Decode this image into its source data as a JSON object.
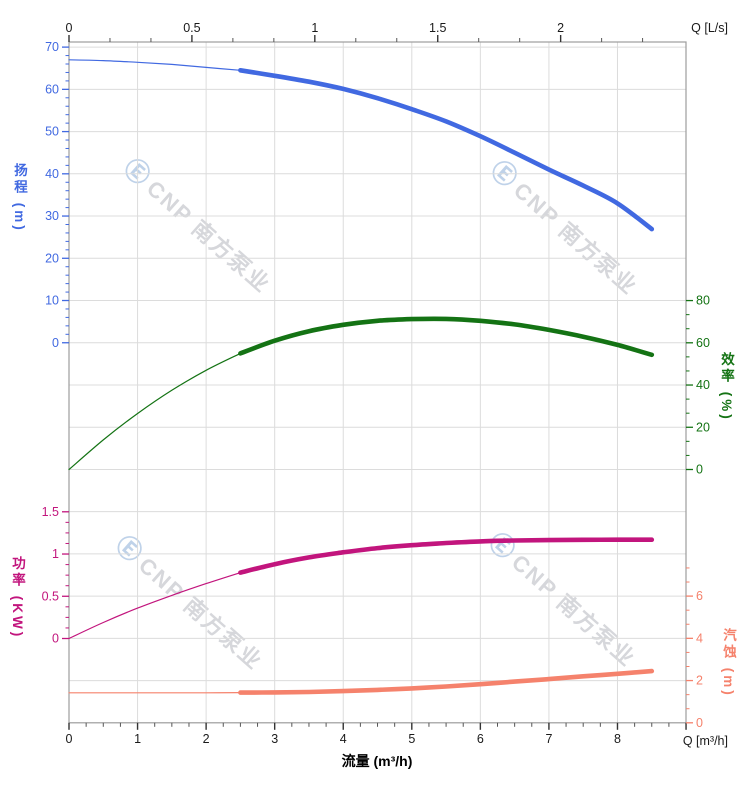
{
  "watermark": {
    "logo": "Ⓔ",
    "text": "CNP 南方泵业",
    "logo_color": "#BFD2E9",
    "text_color": "#D6D7DB"
  },
  "chart_data": {
    "type": "line",
    "title": "",
    "grid": true,
    "x_axis_top": {
      "label": "Q [L/s]",
      "ticks": [
        0,
        0.5,
        1,
        1.5,
        2
      ],
      "range": [
        0,
        2.5
      ],
      "color": "#1a1a1a"
    },
    "x_axis_bottom": {
      "label": "Q [m³/h]",
      "title": "流量 (m³/h)",
      "ticks": [
        0,
        1,
        2,
        3,
        4,
        5,
        6,
        7,
        8
      ],
      "range": [
        0,
        9
      ],
      "color": "#1a1a1a"
    },
    "y_axes": [
      {
        "id": "head",
        "title": "扬程 (m)",
        "side": "left",
        "color": "#4169E1",
        "ticks": [
          0,
          10,
          20,
          30,
          40,
          50,
          60,
          70
        ],
        "range": [
          0,
          70
        ]
      },
      {
        "id": "eff",
        "title": "效率 (%)",
        "side": "right",
        "color": "#147314",
        "ticks": [
          0,
          20,
          40,
          60,
          80
        ],
        "range": [
          0,
          80
        ]
      },
      {
        "id": "power",
        "title": "功率 (KW)",
        "side": "left",
        "color": "#C2157D",
        "ticks": [
          0,
          0.5,
          1,
          1.5
        ],
        "range": [
          0,
          1.5
        ]
      },
      {
        "id": "npsh",
        "title": "汽蚀 (m)",
        "side": "right",
        "color": "#F5826C",
        "ticks": [
          0,
          2,
          4,
          6
        ],
        "range": [
          0,
          6
        ]
      }
    ],
    "duty_split_q": 2.5,
    "series": [
      {
        "name": "head",
        "label": "扬程",
        "axis": "head",
        "color": "#4169E1",
        "points": [
          [
            0,
            67
          ],
          [
            0.5,
            66.8
          ],
          [
            1,
            66.4
          ],
          [
            1.5,
            65.9
          ],
          [
            2,
            65.2
          ],
          [
            2.5,
            64.5
          ],
          [
            3,
            63.2
          ],
          [
            3.5,
            61.8
          ],
          [
            4,
            60.1
          ],
          [
            4.5,
            57.9
          ],
          [
            5,
            55.3
          ],
          [
            5.5,
            52.4
          ],
          [
            6,
            48.9
          ],
          [
            6.5,
            45
          ],
          [
            7,
            41
          ],
          [
            7.5,
            37.2
          ],
          [
            8,
            33
          ],
          [
            8.5,
            26.9
          ]
        ]
      },
      {
        "name": "efficiency",
        "label": "效率",
        "axis": "eff",
        "color": "#147314",
        "points": [
          [
            0,
            0
          ],
          [
            0.5,
            14
          ],
          [
            1,
            26.5
          ],
          [
            1.5,
            37.5
          ],
          [
            2,
            47
          ],
          [
            2.5,
            55
          ],
          [
            3,
            61
          ],
          [
            3.5,
            65.5
          ],
          [
            4,
            68.5
          ],
          [
            4.5,
            70.4
          ],
          [
            5,
            71.2
          ],
          [
            5.5,
            71.3
          ],
          [
            6,
            70.4
          ],
          [
            6.5,
            68.7
          ],
          [
            7,
            66.1
          ],
          [
            7.5,
            62.9
          ],
          [
            8,
            59
          ],
          [
            8.5,
            54.3
          ]
        ]
      },
      {
        "name": "power",
        "label": "功率",
        "axis": "power",
        "color": "#C2157D",
        "points": [
          [
            0,
            0
          ],
          [
            0.5,
            0.19
          ],
          [
            1,
            0.36
          ],
          [
            1.5,
            0.51
          ],
          [
            2,
            0.65
          ],
          [
            2.5,
            0.78
          ],
          [
            3,
            0.88
          ],
          [
            3.5,
            0.96
          ],
          [
            4,
            1.02
          ],
          [
            4.5,
            1.07
          ],
          [
            5,
            1.105
          ],
          [
            5.5,
            1.13
          ],
          [
            6,
            1.15
          ],
          [
            6.5,
            1.16
          ],
          [
            7,
            1.165
          ],
          [
            7.5,
            1.168
          ],
          [
            8,
            1.17
          ],
          [
            8.5,
            1.17
          ]
        ]
      },
      {
        "name": "npsh",
        "label": "汽蚀",
        "axis": "npsh",
        "color": "#F5826C",
        "points": [
          [
            0,
            1.42
          ],
          [
            0.5,
            1.42
          ],
          [
            1,
            1.42
          ],
          [
            1.5,
            1.42
          ],
          [
            2,
            1.42
          ],
          [
            2.5,
            1.43
          ],
          [
            3,
            1.44
          ],
          [
            3.5,
            1.46
          ],
          [
            4,
            1.5
          ],
          [
            4.5,
            1.56
          ],
          [
            5,
            1.63
          ],
          [
            5.5,
            1.72
          ],
          [
            6,
            1.83
          ],
          [
            6.5,
            1.95
          ],
          [
            7,
            2.07
          ],
          [
            7.5,
            2.2
          ],
          [
            8,
            2.32
          ],
          [
            8.5,
            2.45
          ]
        ]
      }
    ],
    "colors": {
      "grid": "#DCDCDC",
      "border": "#9C9C9C",
      "tick_dark": "#333333"
    }
  }
}
